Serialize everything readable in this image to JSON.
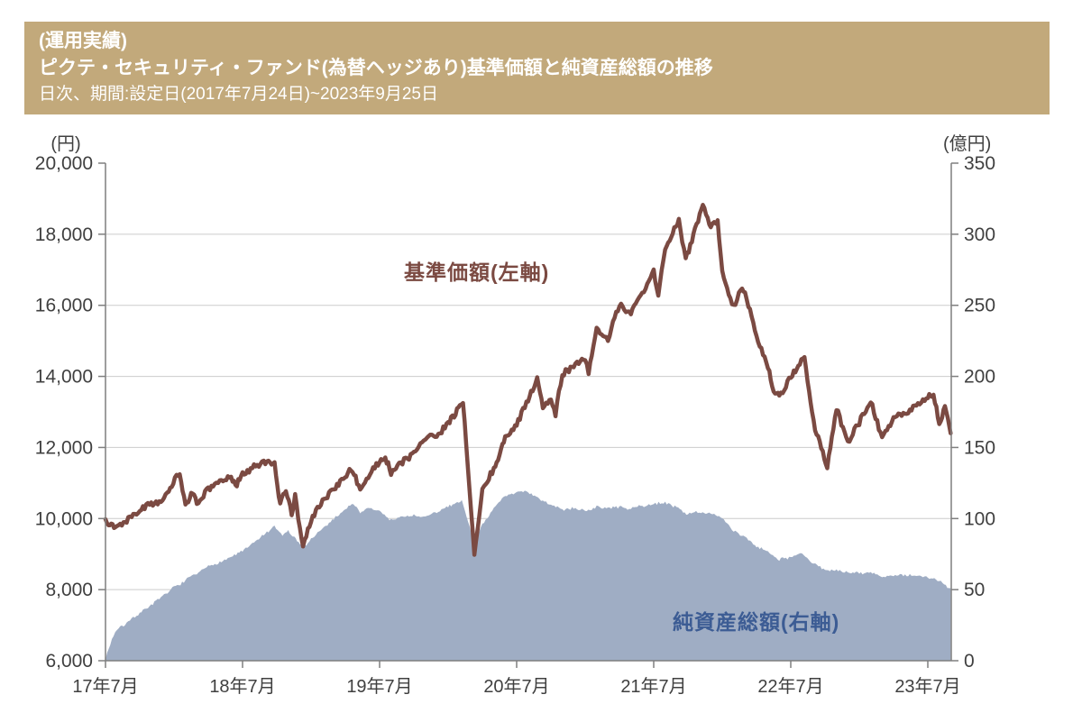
{
  "header": {
    "tag": "(運用実績)",
    "title": "ピクテ・セキュリティ・ファンド(為替ヘッジあり)基準価額と純資産総額の推移",
    "subtitle": "日次、期間:設定日(2017年7月24日)~2023年9月25日",
    "bg_color": "#c2a97b",
    "text_color": "#ffffff"
  },
  "chart_data": {
    "type": "line+area",
    "title": "基準価額と純資産総額の推移",
    "grid": true,
    "grid_color": "#cccccc",
    "axis_color": "#7f7f7f",
    "tick_text_color": "#404040",
    "left_axis": {
      "unit": "(円)",
      "min": 6000,
      "max": 20000,
      "ticks": [
        {
          "value": 20000,
          "label": "20,000"
        },
        {
          "value": 18000,
          "label": "18,000"
        },
        {
          "value": 16000,
          "label": "16,000"
        },
        {
          "value": 14000,
          "label": "14,000"
        },
        {
          "value": 12000,
          "label": "12,000"
        },
        {
          "value": 10000,
          "label": "10,000"
        },
        {
          "value": 8000,
          "label": "8,000"
        },
        {
          "value": 6000,
          "label": "6,000"
        }
      ]
    },
    "right_axis": {
      "unit": "(億円)",
      "min": 0,
      "max": 350,
      "ticks": [
        {
          "value": 350,
          "label": "350"
        },
        {
          "value": 300,
          "label": "300"
        },
        {
          "value": 250,
          "label": "250"
        },
        {
          "value": 200,
          "label": "200"
        },
        {
          "value": 150,
          "label": "150"
        },
        {
          "value": 100,
          "label": "100"
        },
        {
          "value": 50,
          "label": "50"
        },
        {
          "value": 0,
          "label": "0"
        }
      ]
    },
    "x_axis": {
      "start": "2017-07",
      "end": "2023-09",
      "end_month": 74,
      "ticks": [
        {
          "month": 0,
          "label": "17年7月"
        },
        {
          "month": 12,
          "label": "18年7月"
        },
        {
          "month": 24,
          "label": "19年7月"
        },
        {
          "month": 36,
          "label": "20年7月"
        },
        {
          "month": 48,
          "label": "21年7月"
        },
        {
          "month": 60,
          "label": "22年7月"
        },
        {
          "month": 72,
          "label": "23年7月"
        }
      ]
    },
    "series": [
      {
        "name": "基準価額",
        "label": "基準価額(左軸)",
        "axis": "left",
        "kind": "line",
        "color": "#7b4a42",
        "label_color": "#7b4a42",
        "points": [
          [
            0,
            10000
          ],
          [
            0.5,
            9850
          ],
          [
            1,
            9800
          ],
          [
            2,
            10050
          ],
          [
            3,
            10350
          ],
          [
            4,
            10500
          ],
          [
            5,
            10480
          ],
          [
            5.8,
            11000
          ],
          [
            6.5,
            11300
          ],
          [
            7,
            10350
          ],
          [
            7.5,
            10700
          ],
          [
            8,
            10450
          ],
          [
            9,
            10800
          ],
          [
            10,
            11050
          ],
          [
            11,
            11100
          ],
          [
            11.5,
            10950
          ],
          [
            12,
            11200
          ],
          [
            13,
            11450
          ],
          [
            14,
            11550
          ],
          [
            14.8,
            11600
          ],
          [
            15.3,
            10400
          ],
          [
            15.8,
            10850
          ],
          [
            16.3,
            10150
          ],
          [
            16.6,
            10600
          ],
          [
            17.3,
            9150
          ],
          [
            18,
            9950
          ],
          [
            19,
            10500
          ],
          [
            20,
            10850
          ],
          [
            21.5,
            11400
          ],
          [
            22.3,
            10800
          ],
          [
            23,
            11200
          ],
          [
            24,
            11600
          ],
          [
            24.5,
            11700
          ],
          [
            25,
            11300
          ],
          [
            26,
            11600
          ],
          [
            27,
            11800
          ],
          [
            28,
            12250
          ],
          [
            29,
            12400
          ],
          [
            30,
            12700
          ],
          [
            31.3,
            13300
          ],
          [
            32.3,
            9000
          ],
          [
            33,
            10800
          ],
          [
            34,
            11400
          ],
          [
            34.5,
            11800
          ],
          [
            35,
            12300
          ],
          [
            36,
            12600
          ],
          [
            37,
            13300
          ],
          [
            37.8,
            13950
          ],
          [
            38.3,
            13100
          ],
          [
            39,
            13400
          ],
          [
            39.4,
            13000
          ],
          [
            40,
            14100
          ],
          [
            41,
            14300
          ],
          [
            42,
            14500
          ],
          [
            42.3,
            14100
          ],
          [
            43,
            15300
          ],
          [
            44,
            15000
          ],
          [
            45,
            16000
          ],
          [
            46,
            15700
          ],
          [
            47,
            16300
          ],
          [
            48,
            16900
          ],
          [
            48.4,
            16300
          ],
          [
            49,
            17600
          ],
          [
            50.2,
            18400
          ],
          [
            50.8,
            17300
          ],
          [
            52.3,
            18800
          ],
          [
            53,
            18200
          ],
          [
            53.6,
            18400
          ],
          [
            54,
            16900
          ],
          [
            55,
            15900
          ],
          [
            55.6,
            16450
          ],
          [
            56,
            16300
          ],
          [
            57,
            15100
          ],
          [
            58,
            14200
          ],
          [
            58.5,
            13600
          ],
          [
            59,
            13400
          ],
          [
            60,
            14000
          ],
          [
            61.2,
            14550
          ],
          [
            62,
            12700
          ],
          [
            63.2,
            11450
          ],
          [
            64,
            13050
          ],
          [
            65,
            12100
          ],
          [
            66,
            12700
          ],
          [
            67,
            13350
          ],
          [
            68,
            12300
          ],
          [
            69,
            12850
          ],
          [
            70,
            12950
          ],
          [
            71,
            13250
          ],
          [
            72,
            13450
          ],
          [
            72.5,
            13450
          ],
          [
            73,
            12750
          ],
          [
            73.5,
            13100
          ],
          [
            74,
            12400
          ]
        ]
      },
      {
        "name": "純資産総額",
        "label": "純資産総額(右軸)",
        "axis": "right",
        "kind": "area",
        "color": "#9fadc4",
        "label_color": "#3c5c94",
        "points": [
          [
            0,
            2
          ],
          [
            0.7,
            18
          ],
          [
            1,
            22
          ],
          [
            2,
            28
          ],
          [
            3,
            34
          ],
          [
            4,
            40
          ],
          [
            5,
            45
          ],
          [
            6,
            51
          ],
          [
            7,
            56
          ],
          [
            8,
            61
          ],
          [
            9,
            66
          ],
          [
            10,
            70
          ],
          [
            11,
            73
          ],
          [
            12,
            77
          ],
          [
            13,
            83
          ],
          [
            14,
            89
          ],
          [
            14.8,
            94
          ],
          [
            15.5,
            88
          ],
          [
            16,
            91
          ],
          [
            17.3,
            79
          ],
          [
            18,
            85
          ],
          [
            19,
            93
          ],
          [
            20,
            100
          ],
          [
            21,
            107
          ],
          [
            21.7,
            110
          ],
          [
            22.3,
            105
          ],
          [
            23,
            107
          ],
          [
            24,
            105
          ],
          [
            25,
            99
          ],
          [
            26,
            101
          ],
          [
            27,
            102
          ],
          [
            28,
            101
          ],
          [
            29,
            104
          ],
          [
            30,
            108
          ],
          [
            31.2,
            113
          ],
          [
            32.3,
            83
          ],
          [
            33,
            97
          ],
          [
            34,
            107
          ],
          [
            35,
            116
          ],
          [
            36,
            119
          ],
          [
            37,
            118
          ],
          [
            38,
            113
          ],
          [
            39,
            109
          ],
          [
            40,
            106
          ],
          [
            41,
            108
          ],
          [
            42,
            106
          ],
          [
            43,
            108
          ],
          [
            44,
            107
          ],
          [
            45,
            108
          ],
          [
            46,
            107
          ],
          [
            47,
            109
          ],
          [
            48,
            110
          ],
          [
            49,
            111
          ],
          [
            50,
            108
          ],
          [
            51,
            103
          ],
          [
            52,
            105
          ],
          [
            53,
            104
          ],
          [
            54,
            100
          ],
          [
            55,
            91
          ],
          [
            56,
            87
          ],
          [
            57,
            81
          ],
          [
            58,
            77
          ],
          [
            59,
            72
          ],
          [
            60,
            73
          ],
          [
            61,
            75
          ],
          [
            62,
            68
          ],
          [
            63,
            63
          ],
          [
            64,
            64
          ],
          [
            65,
            62
          ],
          [
            66,
            61
          ],
          [
            67,
            62
          ],
          [
            68,
            59
          ],
          [
            69,
            60
          ],
          [
            70,
            60
          ],
          [
            71,
            59
          ],
          [
            72,
            58
          ],
          [
            73,
            56
          ],
          [
            74,
            51
          ]
        ]
      }
    ]
  }
}
